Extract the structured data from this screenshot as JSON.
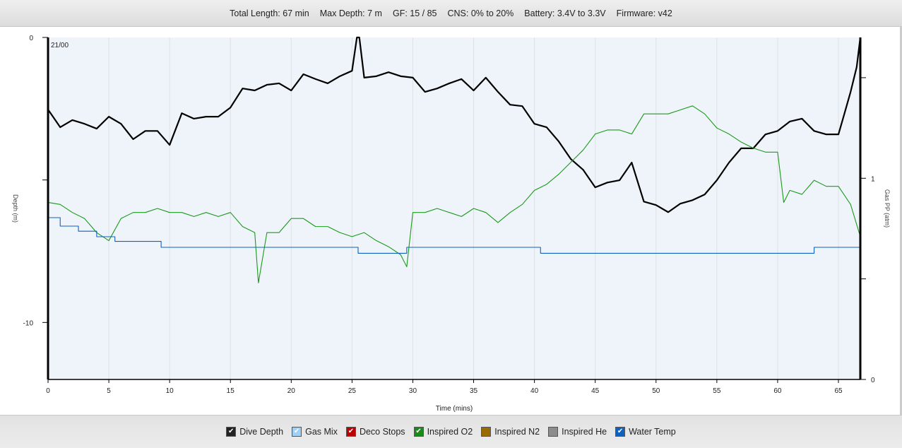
{
  "header": {
    "items": [
      "Total Length: 67 min",
      "Max Depth: 7 m",
      "GF: 15 / 85",
      "CNS: 0% to 20%",
      "Battery: 3.4V to 3.3V",
      "Firmware: v42"
    ]
  },
  "legend": [
    {
      "label": "Dive Depth",
      "color": "#222222",
      "checked": true
    },
    {
      "label": "Gas Mix",
      "color": "#9fd0f5",
      "checked": true
    },
    {
      "label": "Deco Stops",
      "color": "#c00000",
      "checked": true
    },
    {
      "label": "Inspired O2",
      "color": "#1a8a1a",
      "checked": true
    },
    {
      "label": "Inspired N2",
      "color": "#9a6a00",
      "checked": false
    },
    {
      "label": "Inspired He",
      "color": "#8c8c8c",
      "checked": false
    },
    {
      "label": "Water Temp",
      "color": "#1060c0",
      "checked": true
    }
  ],
  "chart_data": {
    "type": "line",
    "xlabel": "Time (mins)",
    "ylabel": "Depth (m)",
    "y2label": "Gas PP (atm)",
    "annotation": "21/00",
    "xlim": [
      0,
      66.8
    ],
    "xticks": [
      0,
      5,
      10,
      15,
      20,
      25,
      30,
      35,
      40,
      45,
      50,
      55,
      60,
      65
    ],
    "ylim": [
      0,
      -12
    ],
    "yticks": [
      {
        "v": 0,
        "label": "0"
      },
      {
        "v": -5,
        "label": ""
      },
      {
        "v": -10,
        "label": "-10"
      }
    ],
    "y2lim": [
      0,
      1.7
    ],
    "y2ticks": [
      {
        "v": 0,
        "label": "0"
      },
      {
        "v": 0.5,
        "label": ""
      },
      {
        "v": 1,
        "label": "1"
      },
      {
        "v": 1.5,
        "label": ""
      }
    ],
    "grid": "vertical",
    "colors": {
      "depth": "#000000",
      "o2": "#1a9a1a",
      "temp": "#1060c0",
      "bg": "#eef4f9"
    },
    "series": [
      {
        "name": "Dive Depth",
        "axis": "depth",
        "x": [
          0,
          1,
          2,
          3,
          4,
          5,
          6,
          7,
          8,
          9,
          10,
          11,
          12,
          13,
          14,
          15,
          16,
          17,
          18,
          19,
          20,
          21,
          22,
          23,
          24,
          25,
          25.4,
          25.6,
          26,
          27,
          28,
          29,
          30,
          31,
          32,
          33,
          34,
          35,
          36,
          37,
          38,
          39,
          40,
          41,
          42,
          43,
          44,
          45,
          46,
          47,
          48,
          49,
          50,
          51,
          52,
          53,
          54,
          55,
          56,
          57,
          58,
          59,
          60,
          61,
          62,
          63,
          64,
          65,
          65.5,
          66,
          66.5,
          66.8
        ],
        "y": [
          2.53,
          3.15,
          2.9,
          3.03,
          3.2,
          2.78,
          3.03,
          3.57,
          3.28,
          3.28,
          3.77,
          2.66,
          2.85,
          2.78,
          2.78,
          2.46,
          1.79,
          1.86,
          1.66,
          1.61,
          1.86,
          1.29,
          1.46,
          1.61,
          1.36,
          1.17,
          0,
          0,
          1.41,
          1.36,
          1.22,
          1.36,
          1.41,
          1.91,
          1.79,
          1.61,
          1.46,
          1.86,
          1.41,
          1.91,
          2.36,
          2.41,
          3.03,
          3.15,
          3.65,
          4.27,
          4.64,
          5.26,
          5.09,
          5.01,
          4.39,
          5.76,
          5.88,
          6.13,
          5.83,
          5.71,
          5.51,
          5.01,
          4.39,
          3.89,
          3.89,
          3.4,
          3.28,
          2.95,
          2.85,
          3.28,
          3.4,
          3.4,
          2.66,
          1.91,
          1.04,
          0
        ]
      },
      {
        "name": "Inspired O2",
        "axis": "pp",
        "x": [
          0,
          1,
          2,
          3,
          4,
          5,
          6,
          7,
          8,
          9,
          10,
          11,
          12,
          13,
          14,
          15,
          16,
          17,
          17.3,
          18,
          19,
          20,
          21,
          22,
          23,
          24,
          25,
          26,
          27,
          28,
          29,
          29.5,
          30,
          31,
          32,
          33,
          34,
          35,
          36,
          37,
          38,
          39,
          40,
          41,
          42,
          43,
          44,
          45,
          46,
          47,
          48,
          49,
          50,
          51,
          52,
          53,
          54,
          55,
          56,
          57,
          58,
          59,
          60,
          60.5,
          61,
          62,
          63,
          64,
          65,
          66,
          66.8
        ],
        "y": [
          0.88,
          0.87,
          0.83,
          0.8,
          0.73,
          0.69,
          0.8,
          0.83,
          0.83,
          0.85,
          0.83,
          0.83,
          0.81,
          0.83,
          0.81,
          0.83,
          0.76,
          0.73,
          0.48,
          0.73,
          0.73,
          0.8,
          0.8,
          0.76,
          0.76,
          0.73,
          0.71,
          0.73,
          0.69,
          0.66,
          0.62,
          0.56,
          0.83,
          0.83,
          0.85,
          0.83,
          0.81,
          0.85,
          0.83,
          0.78,
          0.83,
          0.87,
          0.94,
          0.97,
          1.02,
          1.08,
          1.14,
          1.22,
          1.24,
          1.24,
          1.22,
          1.32,
          1.32,
          1.32,
          1.34,
          1.36,
          1.32,
          1.25,
          1.22,
          1.18,
          1.15,
          1.13,
          1.13,
          0.88,
          0.94,
          0.92,
          0.99,
          0.96,
          0.96,
          0.87,
          0.71
        ]
      },
      {
        "name": "Water Temp",
        "axis": "temp",
        "step": true,
        "x": [
          0,
          1,
          2.5,
          4,
          5.5,
          9.3,
          25.5,
          29.5,
          40.5,
          63,
          66.8
        ],
        "y": [
          23,
          22,
          21.4,
          20.75,
          20.2,
          19.5,
          18.8,
          19.5,
          18.8,
          19.5,
          19.5
        ]
      }
    ]
  }
}
